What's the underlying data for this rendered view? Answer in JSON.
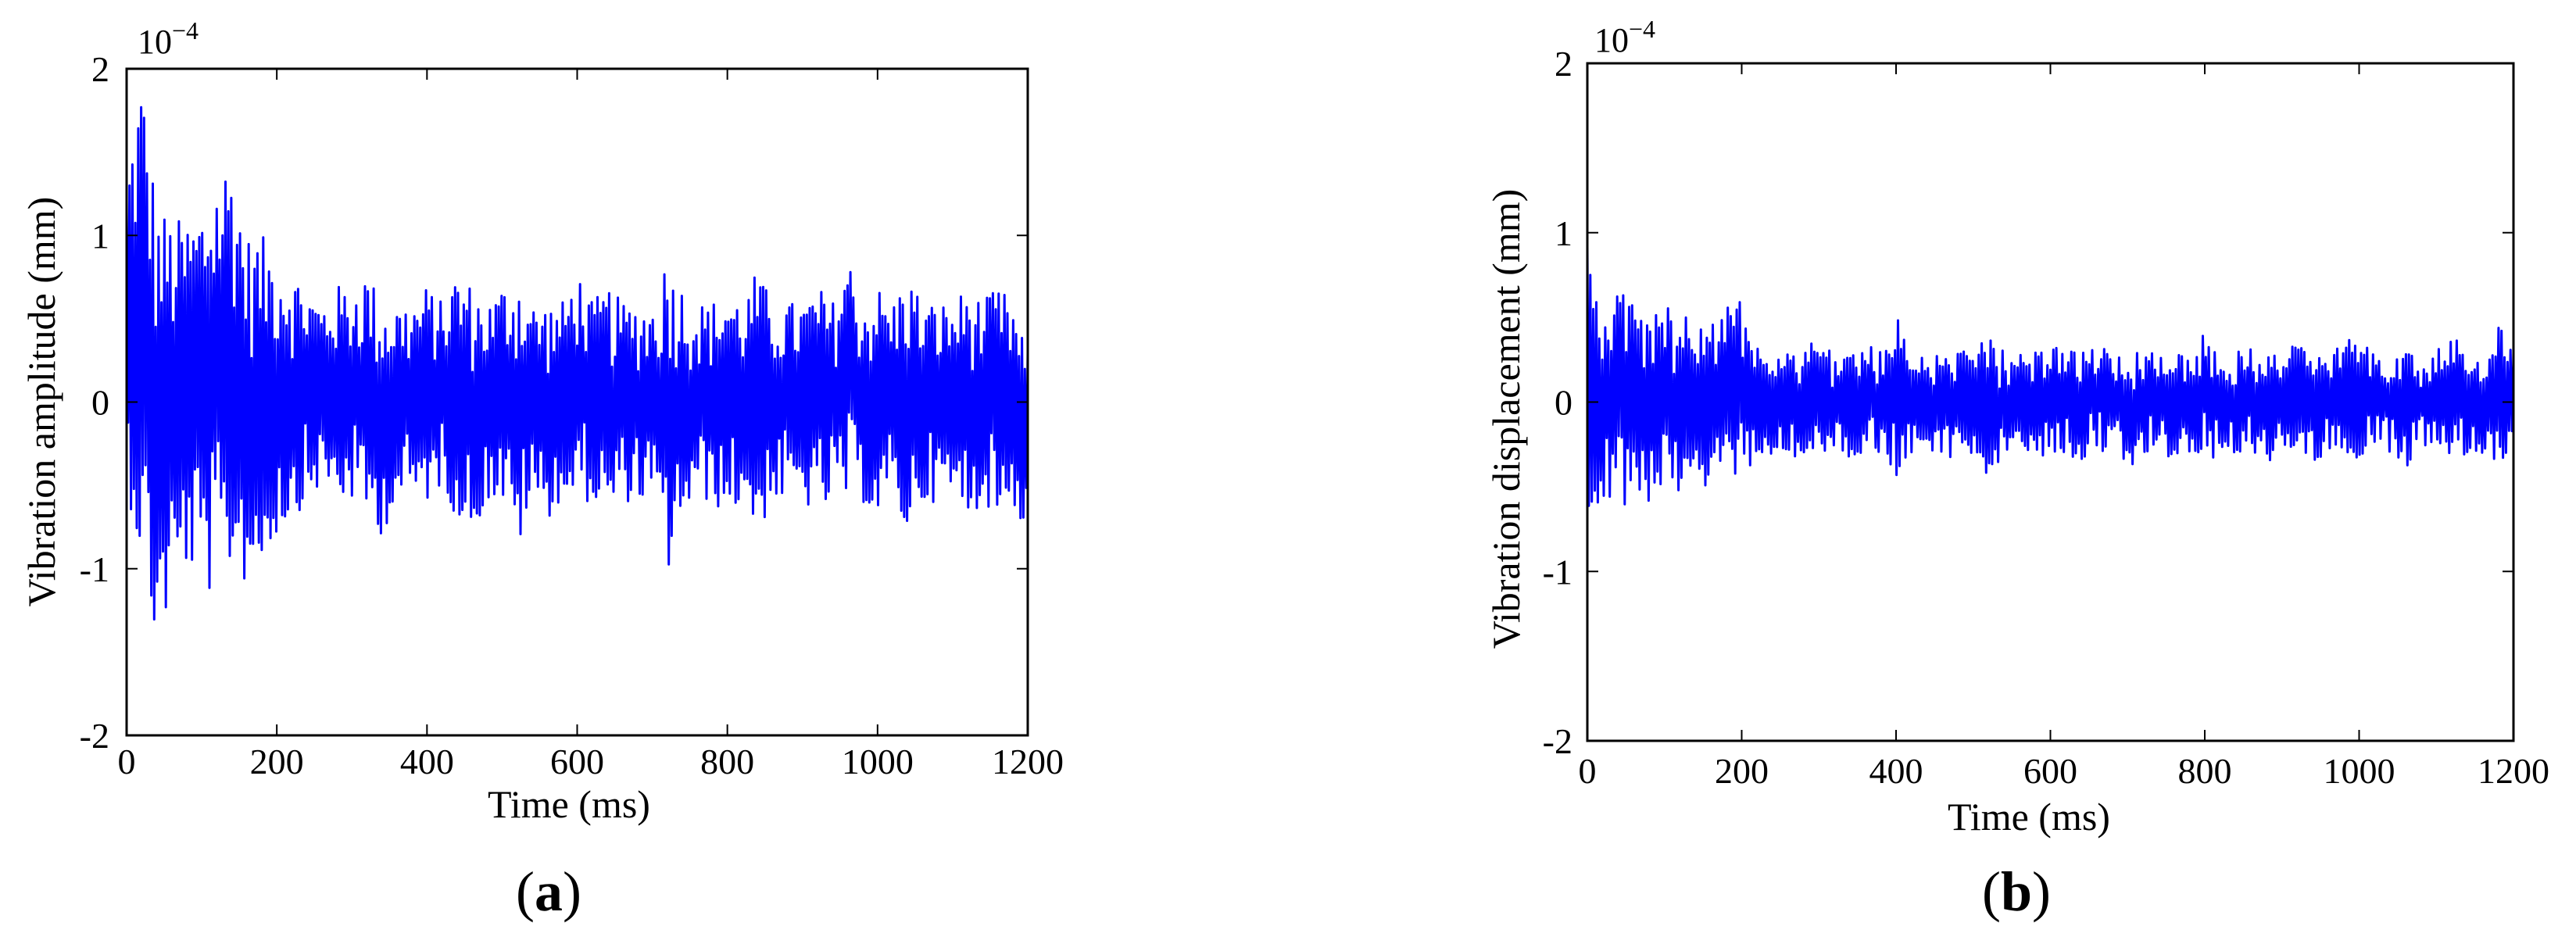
{
  "colors": {
    "series": "#0000ff",
    "axis": "#000000",
    "background": "#ffffff"
  },
  "chart_data": [
    {
      "type": "line",
      "panel_label": "(a)",
      "panel_letter": "a",
      "xlabel": "Time (ms)",
      "ylabel": "Vibration amplitude (mm)",
      "y_multiplier": "10",
      "y_multiplier_exp": "−4",
      "xlim": [
        0,
        1200
      ],
      "ylim": [
        -2,
        2
      ],
      "xticks": [
        "0",
        "200",
        "400",
        "600",
        "800",
        "1000",
        "1200"
      ],
      "yticks": [
        "-2",
        "-1",
        "0",
        "1",
        "2"
      ],
      "grid": false,
      "series": [
        {
          "color": "#0000ff",
          "x": [
            0,
            20,
            40,
            60,
            80,
            100,
            120,
            140,
            160,
            180,
            200,
            220,
            240,
            260,
            280,
            300,
            320,
            340,
            360,
            380,
            400,
            420,
            440,
            460,
            480,
            500,
            520,
            540,
            560,
            580,
            600,
            620,
            640,
            660,
            680,
            700,
            720,
            740,
            760,
            780,
            800,
            820,
            840,
            860,
            880,
            900,
            920,
            940,
            960,
            980,
            1000,
            1020,
            1040,
            1060,
            1080,
            1100,
            1120,
            1140,
            1160,
            1180,
            1200
          ],
          "max": [
            1.4,
            2.0,
            1.2,
            1.1,
            1.1,
            1.2,
            1.4,
            1.5,
            1.0,
            1.0,
            0.9,
            0.8,
            0.7,
            0.6,
            0.7,
            0.7,
            0.8,
            0.6,
            0.6,
            0.6,
            0.7,
            0.6,
            0.8,
            0.7,
            0.6,
            0.7,
            0.8,
            0.6,
            0.6,
            0.6,
            0.8,
            0.6,
            0.7,
            0.6,
            0.6,
            0.6,
            0.9,
            0.7,
            0.6,
            0.6,
            0.7,
            0.6,
            0.8,
            0.6,
            0.6,
            0.6,
            0.7,
            0.6,
            0.9,
            0.6,
            0.7,
            0.6,
            0.8,
            0.6,
            0.6,
            0.6,
            0.7,
            0.6,
            0.7,
            0.6,
            0.3
          ],
          "min": [
            -0.5,
            -1.0,
            -1.5,
            -1.2,
            -1.0,
            -1.1,
            -1.2,
            -1.0,
            -1.1,
            -1.0,
            -0.8,
            -0.7,
            -0.6,
            -0.5,
            -0.6,
            -0.6,
            -0.7,
            -0.8,
            -0.6,
            -0.6,
            -0.6,
            -0.5,
            -0.7,
            -0.8,
            -0.6,
            -0.6,
            -0.9,
            -0.6,
            -0.7,
            -0.6,
            -0.6,
            -0.6,
            -0.7,
            -0.6,
            -0.6,
            -0.6,
            -1.05,
            -0.7,
            -0.6,
            -0.6,
            -0.7,
            -0.6,
            -0.8,
            -0.6,
            -0.6,
            -0.6,
            -0.7,
            -0.6,
            -0.6,
            -0.6,
            -0.7,
            -0.6,
            -0.8,
            -0.6,
            -0.6,
            -0.6,
            -0.7,
            -0.6,
            -0.7,
            -0.6,
            -0.85
          ]
        }
      ]
    },
    {
      "type": "line",
      "panel_label": "(b)",
      "panel_letter": "b",
      "xlabel": "Time (ms)",
      "ylabel": "Vibration displacement (mm)",
      "y_multiplier": "10",
      "y_multiplier_exp": "−4",
      "xlim": [
        0,
        1200
      ],
      "ylim": [
        -2,
        2
      ],
      "xticks": [
        "0",
        "200",
        "400",
        "600",
        "800",
        "1000",
        "1200"
      ],
      "yticks": [
        "-2",
        "-1",
        "0",
        "1",
        "2"
      ],
      "grid": false,
      "series": [
        {
          "color": "#0000ff",
          "x": [
            0,
            20,
            40,
            60,
            80,
            100,
            120,
            140,
            160,
            180,
            200,
            220,
            240,
            260,
            280,
            300,
            320,
            340,
            360,
            380,
            400,
            420,
            440,
            460,
            480,
            500,
            520,
            540,
            560,
            580,
            600,
            620,
            640,
            660,
            680,
            700,
            720,
            740,
            760,
            780,
            800,
            820,
            840,
            860,
            880,
            900,
            920,
            940,
            960,
            980,
            1000,
            1020,
            1040,
            1060,
            1080,
            1100,
            1120,
            1140,
            1160,
            1180,
            1200
          ],
          "max": [
            0.95,
            0.7,
            0.65,
            0.6,
            0.55,
            0.55,
            0.6,
            0.55,
            0.5,
            0.55,
            0.65,
            0.4,
            0.3,
            0.3,
            0.35,
            0.4,
            0.3,
            0.3,
            0.35,
            0.3,
            0.55,
            0.3,
            0.3,
            0.35,
            0.3,
            0.3,
            0.4,
            0.3,
            0.3,
            0.35,
            0.4,
            0.3,
            0.3,
            0.4,
            0.3,
            0.3,
            0.35,
            0.3,
            0.3,
            0.35,
            0.4,
            0.3,
            0.3,
            0.35,
            0.3,
            0.3,
            0.4,
            0.3,
            0.3,
            0.35,
            0.4,
            0.3,
            0.3,
            0.35,
            0.3,
            0.3,
            0.4,
            0.3,
            0.3,
            0.45,
            0.35
          ],
          "min": [
            -0.7,
            -0.7,
            -0.65,
            -0.6,
            -0.6,
            -0.55,
            -0.6,
            -0.5,
            -0.5,
            -0.4,
            -0.45,
            -0.35,
            -0.3,
            -0.3,
            -0.35,
            -0.3,
            -0.3,
            -0.35,
            -0.3,
            -0.3,
            -0.45,
            -0.3,
            -0.3,
            -0.35,
            -0.3,
            -0.3,
            -0.45,
            -0.3,
            -0.3,
            -0.35,
            -0.3,
            -0.3,
            -0.35,
            -0.3,
            -0.3,
            -0.4,
            -0.3,
            -0.3,
            -0.35,
            -0.3,
            -0.3,
            -0.35,
            -0.3,
            -0.3,
            -0.4,
            -0.3,
            -0.3,
            -0.35,
            -0.3,
            -0.3,
            -0.35,
            -0.3,
            -0.3,
            -0.4,
            -0.3,
            -0.3,
            -0.35,
            -0.3,
            -0.3,
            -0.35,
            -0.3
          ]
        }
      ]
    }
  ]
}
